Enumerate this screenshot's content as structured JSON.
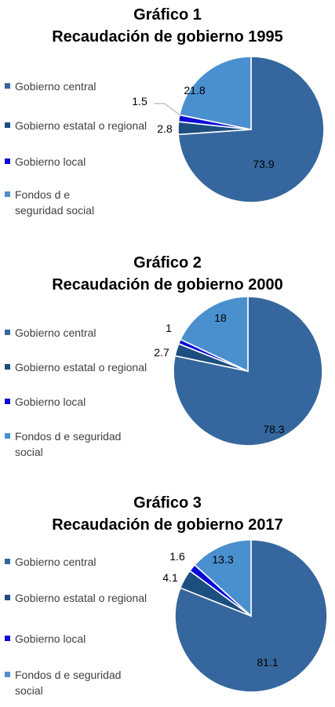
{
  "colors": {
    "gobierno_central": "#35679e",
    "estatal": "#1c4e80",
    "local": "#0a0ad8",
    "fondos": "#4a8fce",
    "border": "#ffffff"
  },
  "chart_data": [
    {
      "type": "pie",
      "title_line1": "Gráfico 1",
      "title_line2": "Recaudación de gobierno 1995",
      "categories": [
        "Gobierno central",
        "Gobierno estatal o regional",
        "Gobierno local",
        "Fondos de seguridad social"
      ],
      "values": [
        73.9,
        2.8,
        1.5,
        21.8
      ],
      "value_labels": [
        "73.9",
        "2.8",
        "1.5",
        "21.8"
      ],
      "legend": [
        {
          "label": "Gobierno central"
        },
        {
          "label": "Gobierno estatal o regional"
        },
        {
          "label": "Gobierno local"
        },
        {
          "label": "Fondos d e seguridad social"
        }
      ],
      "legend_position": "left"
    },
    {
      "type": "pie",
      "title_line1": "Gráfico 2",
      "title_line2": "Recaudación de gobierno 2000",
      "categories": [
        "Gobierno central",
        "Gobierno estatal o regional",
        "Gobierno local",
        "Fondos de seguridad social"
      ],
      "values": [
        78.3,
        2.7,
        1,
        18
      ],
      "value_labels": [
        "78.3",
        "2.7",
        "1",
        "18"
      ],
      "legend": [
        {
          "label": "Gobierno central"
        },
        {
          "label": "Gobierno estatal o regional"
        },
        {
          "label": "Gobierno local"
        },
        {
          "label": "Fondos d e seguridad social"
        }
      ],
      "legend_position": "left"
    },
    {
      "type": "pie",
      "title_line1": "Gráfico 3",
      "title_line2": "Recaudación de gobierno 2017",
      "categories": [
        "Gobierno central",
        "Gobierno estatal o regional",
        "Gobierno local",
        "Fondos de seguridad social"
      ],
      "values": [
        81.1,
        4.1,
        1.6,
        13.3
      ],
      "value_labels": [
        "81.1",
        "4.1",
        "1.6",
        "13.3"
      ],
      "legend": [
        {
          "label": "Gobierno central"
        },
        {
          "label": "Gobierno estatal o regional"
        },
        {
          "label": "Gobierno local"
        },
        {
          "label": "Fondos d e seguridad social"
        }
      ],
      "legend_position": "left"
    }
  ]
}
